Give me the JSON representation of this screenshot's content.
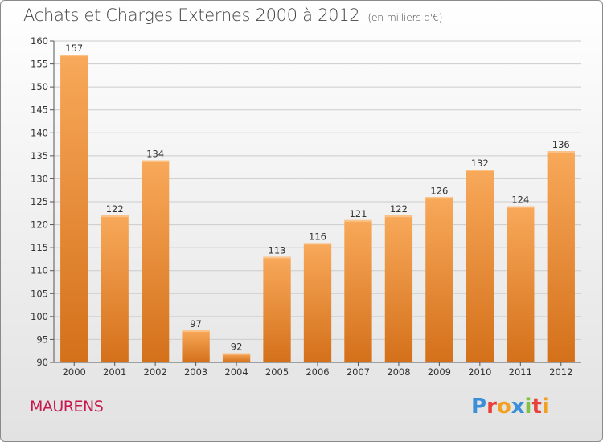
{
  "header": {
    "title": "Achats et Charges Externes 2000 à 2012",
    "unit": "(en milliers d'€)"
  },
  "footer": {
    "commune": "MAURENS",
    "logo_text": "Proxiti",
    "logo_colors": [
      "#3a8fd6",
      "#e8413b",
      "#f2a01f",
      "#3a8fd6",
      "#7fc242",
      "#e8413b",
      "#f2a01f"
    ]
  },
  "colors": {
    "bar_light": "#f8a95a",
    "bar_dark": "#d4701a",
    "grid": "#cccccc",
    "commune": "#c8194f"
  },
  "chart_data": {
    "type": "bar",
    "title": "Achats et Charges Externes 2000 à 2012",
    "subtitle": "(en milliers d'€)",
    "xlabel": "",
    "ylabel": "",
    "categories": [
      "2000",
      "2001",
      "2002",
      "2003",
      "2004",
      "2005",
      "2006",
      "2007",
      "2008",
      "2009",
      "2010",
      "2011",
      "2012"
    ],
    "values": [
      157,
      122,
      134,
      97,
      92,
      113,
      116,
      121,
      122,
      126,
      132,
      124,
      136
    ],
    "ylim": [
      90,
      160
    ],
    "yticks": [
      90,
      95,
      100,
      105,
      110,
      115,
      120,
      125,
      130,
      135,
      140,
      145,
      150,
      155,
      160
    ],
    "grid": true,
    "legend": "none"
  }
}
